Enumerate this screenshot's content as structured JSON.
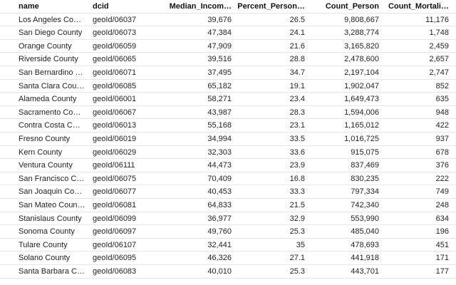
{
  "table": {
    "columns": [
      "name",
      "dcid",
      "Median_Incom…",
      "Percent_Person…",
      "Count_Person",
      "Count_Mortali…"
    ],
    "rows": [
      [
        "Los Angeles Co…",
        "geoId/06037",
        "39,676",
        "26.5",
        "9,808,667",
        "11,176"
      ],
      [
        "San Diego County",
        "geoId/06073",
        "47,384",
        "24.1",
        "3,288,774",
        "1,748"
      ],
      [
        "Orange County",
        "geoId/06059",
        "47,909",
        "21.6",
        "3,165,820",
        "2,459"
      ],
      [
        "Riverside County",
        "geoId/06065",
        "39,516",
        "28.8",
        "2,478,600",
        "2,657"
      ],
      [
        "San Bernardino …",
        "geoId/06071",
        "37,495",
        "34.7",
        "2,197,104",
        "2,747"
      ],
      [
        "Santa Clara Cou…",
        "geoId/06085",
        "65,182",
        "19.1",
        "1,902,047",
        "852"
      ],
      [
        "Alameda County",
        "geoId/06001",
        "58,271",
        "23.4",
        "1,649,473",
        "635"
      ],
      [
        "Sacramento Co…",
        "geoId/06067",
        "43,987",
        "28.3",
        "1,594,006",
        "948"
      ],
      [
        "Contra Costa C…",
        "geoId/06013",
        "55,168",
        "23.1",
        "1,165,012",
        "422"
      ],
      [
        "Fresno County",
        "geoId/06019",
        "34,994",
        "33.5",
        "1,016,725",
        "937"
      ],
      [
        "Kern County",
        "geoId/06029",
        "32,303",
        "33.6",
        "915,075",
        "678"
      ],
      [
        "Ventura County",
        "geoId/06111",
        "44,473",
        "23.9",
        "837,469",
        "376"
      ],
      [
        "San Francisco C…",
        "geoId/06075",
        "70,409",
        "16.8",
        "830,235",
        "222"
      ],
      [
        "San Joaquin Co…",
        "geoId/06077",
        "40,453",
        "33.3",
        "797,334",
        "749"
      ],
      [
        "San Mateo Coun…",
        "geoId/06081",
        "64,833",
        "21.5",
        "742,340",
        "248"
      ],
      [
        "Stanislaus County",
        "geoId/06099",
        "36,977",
        "32.9",
        "553,990",
        "634"
      ],
      [
        "Sonoma County",
        "geoId/06097",
        "49,760",
        "25.3",
        "485,040",
        "196"
      ],
      [
        "Tulare County",
        "geoId/06107",
        "32,441",
        "35",
        "478,693",
        "451"
      ],
      [
        "Solano County",
        "geoId/06095",
        "46,326",
        "27.1",
        "441,918",
        "171"
      ],
      [
        "Santa Barbara C…",
        "geoId/06083",
        "40,010",
        "25.3",
        "443,701",
        "177"
      ]
    ]
  }
}
